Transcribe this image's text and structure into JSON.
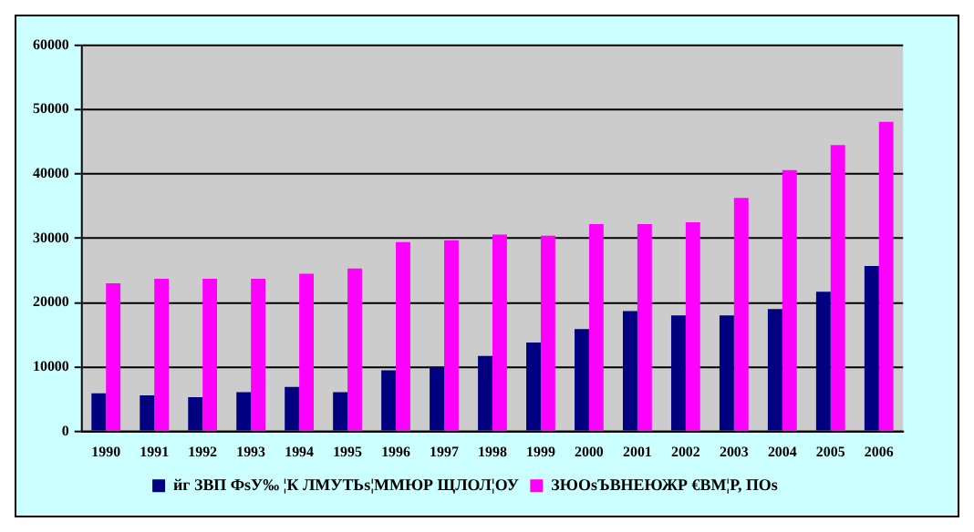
{
  "chart_data": {
    "type": "bar",
    "categories": [
      "1990",
      "1991",
      "1992",
      "1993",
      "1994",
      "1995",
      "1996",
      "1997",
      "1998",
      "1999",
      "2000",
      "2001",
      "2002",
      "2003",
      "2004",
      "2005",
      "2006"
    ],
    "series": [
      {
        "name": "йг ЗВП ФѕУ‰ ¦К ЛМУТЬѕ¦ММЮР ЩЛОЛ¦ОУ",
        "color": "#000080",
        "values": [
          5900,
          5600,
          5300,
          6100,
          6900,
          6100,
          9500,
          10000,
          11700,
          13800,
          15900,
          18700,
          18000,
          18000,
          19000,
          21700,
          25700
        ]
      },
      {
        "name": "ЗЮОѕЪВНЕЮЖР €ВМ¦Р, ПОѕ",
        "color": "#ff00ff",
        "values": [
          23000,
          23700,
          23700,
          23700,
          24500,
          25300,
          29400,
          29700,
          30600,
          30400,
          32200,
          32200,
          32500,
          36300,
          40600,
          44500,
          48100
        ]
      }
    ],
    "ylim": [
      0,
      60000
    ],
    "yticks": [
      0,
      10000,
      20000,
      30000,
      40000,
      50000,
      60000
    ],
    "grid": "y",
    "legend": "bottom"
  }
}
